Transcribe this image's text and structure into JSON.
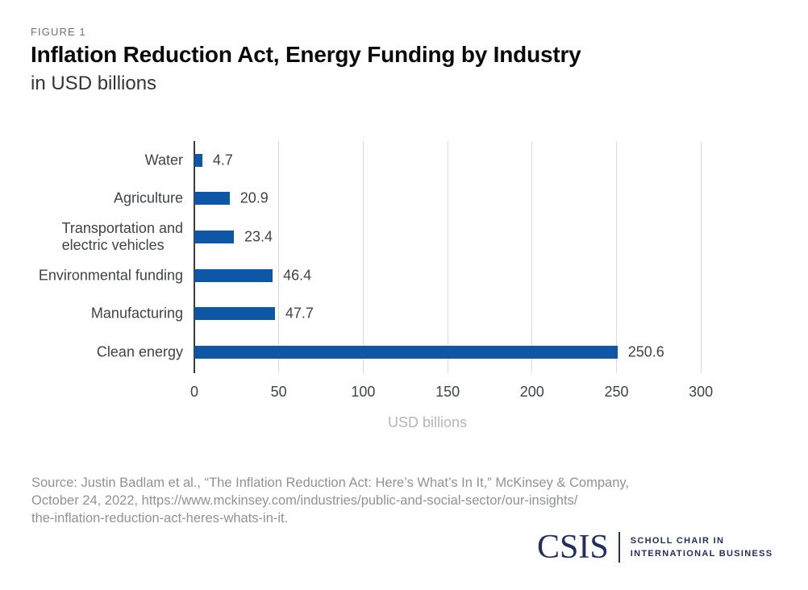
{
  "header": {
    "figure_label": "FIGURE 1",
    "title": "Inflation Reduction Act, Energy Funding by Industry",
    "subtitle": "in USD billions"
  },
  "chart_data": {
    "type": "bar",
    "orientation": "horizontal",
    "title": "Inflation Reduction Act, Energy Funding by Industry",
    "xlabel": "USD billions",
    "xlim": [
      0,
      325
    ],
    "xticks": [
      0,
      50,
      100,
      150,
      200,
      250,
      300
    ],
    "grid": true,
    "legend": false,
    "bar_color": "#0d57a6",
    "categories": [
      "Water",
      "Agriculture",
      "Transportation and\nelectric vehicles",
      "Environmental funding",
      "Manufacturing",
      "Clean energy"
    ],
    "values": [
      4.7,
      20.9,
      23.4,
      46.4,
      47.7,
      250.6
    ],
    "value_labels": [
      "4.7",
      "20.9",
      "23.4",
      "46.4",
      "47.7",
      "250.6"
    ]
  },
  "footer": {
    "source_text": "Source: Justin Badlam et al., “The Inflation Reduction Act: Here’s What’s In It,” McKinsey & Company,\nOctober 24, 2022, https://www.mckinsey.com/industries/public-and-social-sector/our-insights/\nthe-inflation-reduction-act-heres-whats-in-it.",
    "logo": {
      "wordmark": "CSIS",
      "tagline_line1": "SCHOLL CHAIR IN",
      "tagline_line2": "INTERNATIONAL BUSINESS"
    }
  },
  "colors": {
    "bar": "#0d57a6",
    "axis": "#3b3b3b",
    "grid": "#d9d9d9",
    "navy": "#232f5e"
  }
}
